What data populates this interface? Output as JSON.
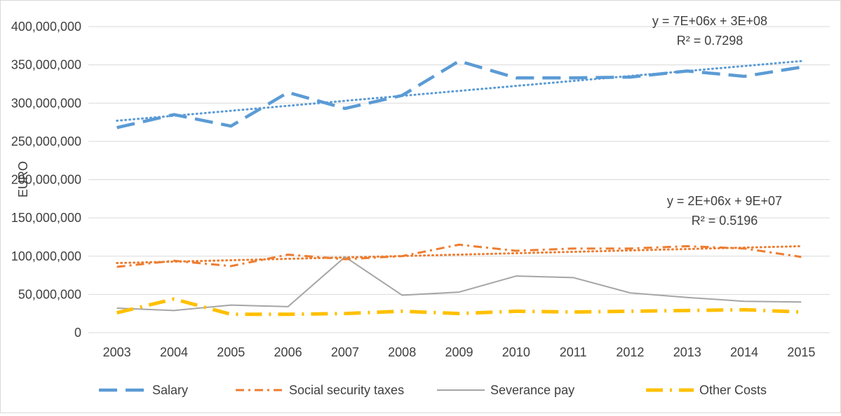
{
  "chart_data": {
    "type": "line",
    "ylabel": "EURO",
    "xlabel": "",
    "ylim": [
      0,
      400000000
    ],
    "y_ticks": [
      "400,000,000",
      "350,000,000",
      "300,000,000",
      "250,000,000",
      "200,000,000",
      "150,000,000",
      "100,000,000",
      "50,000,000",
      "0"
    ],
    "categories": [
      "2003",
      "2004",
      "2005",
      "2006",
      "2007",
      "2008",
      "2009",
      "2010",
      "2011",
      "2012",
      "2013",
      "2014",
      "2015"
    ],
    "grid": "horizontal",
    "legend_position": "bottom",
    "series": [
      {
        "name": "Salary",
        "color": "#5B9BD5",
        "style": "long-dash",
        "values": [
          268000000,
          285000000,
          270000000,
          314000000,
          293000000,
          310000000,
          355000000,
          333000000,
          333000000,
          334000000,
          342000000,
          335000000,
          347000000
        ]
      },
      {
        "name": "Social security taxes",
        "color": "#ED7D31",
        "style": "dash-dot",
        "values": [
          86000000,
          94000000,
          87000000,
          102000000,
          96000000,
          100000000,
          115000000,
          107000000,
          110000000,
          110000000,
          113000000,
          110000000,
          99000000
        ]
      },
      {
        "name": "Severance pay",
        "color": "#A5A5A5",
        "style": "solid",
        "values": [
          32000000,
          29000000,
          36000000,
          34000000,
          99000000,
          49000000,
          53000000,
          74000000,
          72000000,
          52000000,
          46000000,
          41000000,
          40000000
        ]
      },
      {
        "name": "Other Costs",
        "color": "#FFC000",
        "style": "long-dash-dot",
        "values": [
          26000000,
          44000000,
          24000000,
          24000000,
          25000000,
          28000000,
          25000000,
          28000000,
          27000000,
          28000000,
          29000000,
          30000000,
          27000000
        ]
      }
    ],
    "trendlines": [
      {
        "series": "Salary",
        "color": "#5B9BD5",
        "start_value": 277000000,
        "end_value": 355000000,
        "equation": "y = 7E+06x + 3E+08",
        "r_squared": "R² = 0.7298"
      },
      {
        "series": "Social security taxes",
        "color": "#ED7D31",
        "start_value": 91000000,
        "end_value": 113000000,
        "equation": "y = 2E+06x + 9E+07",
        "r_squared": "R² = 0.5196"
      }
    ]
  }
}
